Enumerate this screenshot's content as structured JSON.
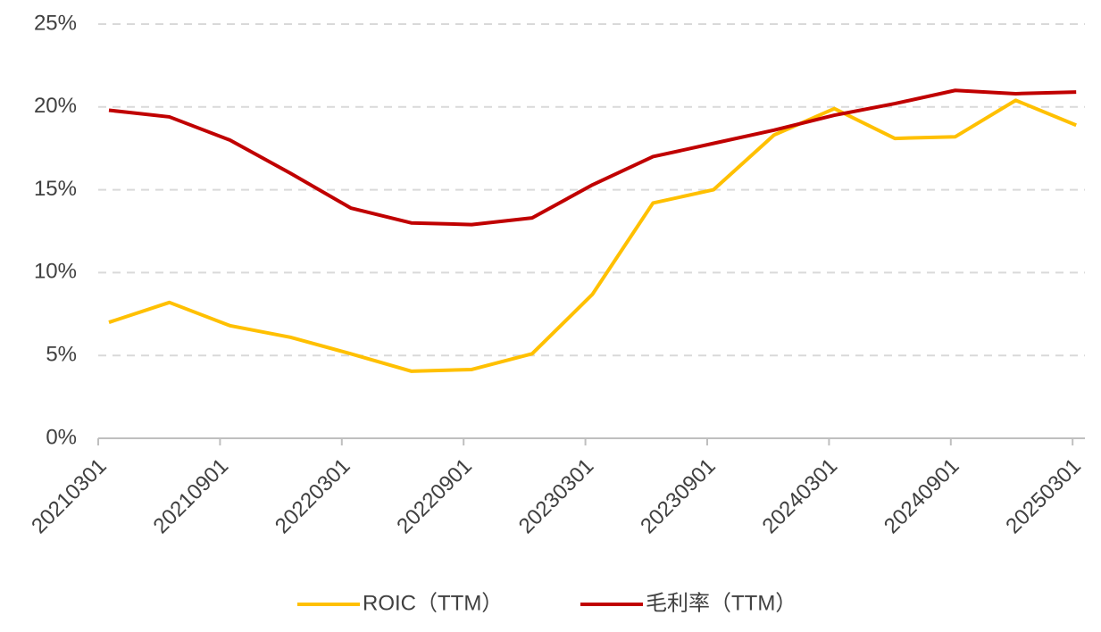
{
  "chart_data": {
    "type": "line",
    "categories": [
      "20210301",
      null,
      "20210901",
      null,
      "20220301",
      null,
      "20220901",
      null,
      "20230301",
      null,
      "20230901",
      null,
      "20240301",
      null,
      "20240901",
      null,
      "20250301"
    ],
    "series": [
      {
        "name": "ROIC（TTM）",
        "color": "#ffc000",
        "values": [
          7.0,
          8.2,
          6.8,
          6.1,
          5.1,
          4.05,
          4.15,
          5.1,
          8.7,
          14.2,
          15.0,
          18.3,
          19.9,
          18.1,
          18.2,
          20.4,
          18.9
        ]
      },
      {
        "name": "毛利率（TTM）",
        "color": "#c00000",
        "values": [
          19.8,
          19.4,
          18.0,
          16.0,
          13.9,
          13.0,
          12.9,
          13.3,
          15.3,
          17.0,
          17.8,
          18.6,
          19.5,
          20.2,
          21.0,
          20.8,
          20.9
        ]
      }
    ],
    "ylim": [
      0,
      25
    ],
    "yticks": [
      {
        "value": 0,
        "label": "0%"
      },
      {
        "value": 5,
        "label": "5%"
      },
      {
        "value": 10,
        "label": "10%"
      },
      {
        "value": 15,
        "label": "15%"
      },
      {
        "value": 20,
        "label": "20%"
      },
      {
        "value": 25,
        "label": "25%"
      }
    ],
    "grid": true,
    "legend": "bottom"
  }
}
